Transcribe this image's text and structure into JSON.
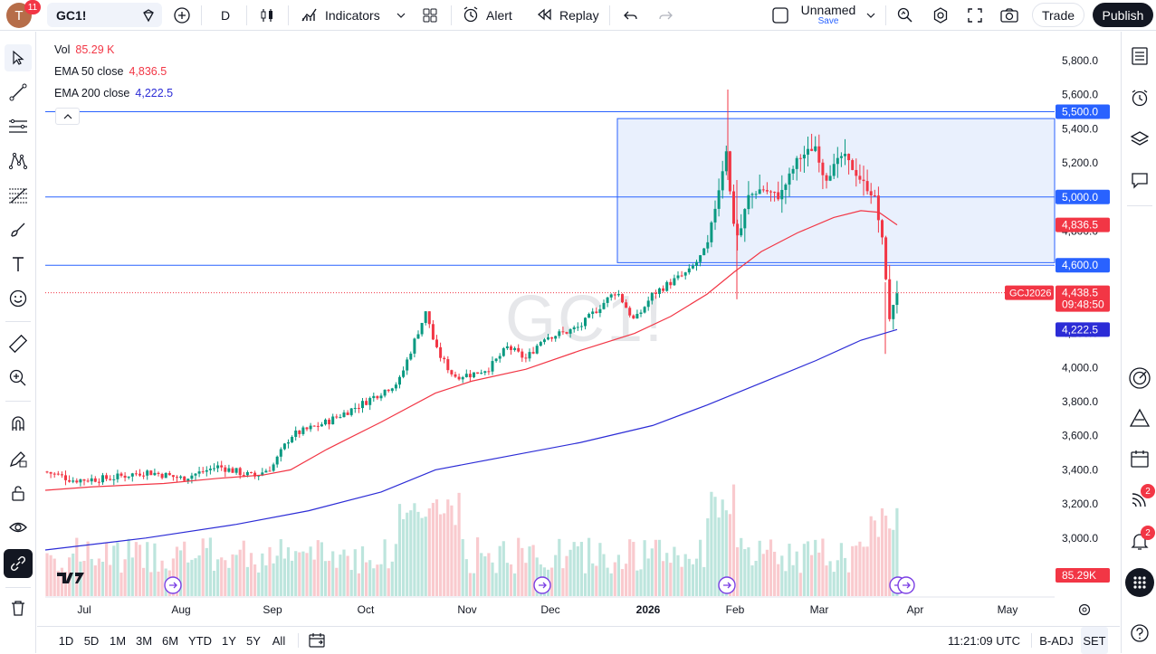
{
  "topbar": {
    "avatar_letter": "T",
    "avatar_badge": "11",
    "symbol": "GC1!",
    "interval": "D",
    "indicators_label": "Indicators",
    "alert_label": "Alert",
    "replay_label": "Replay",
    "layout_name": "Unnamed",
    "layout_save": "Save",
    "trade_label": "Trade",
    "publish_label": "Publish"
  },
  "legend": {
    "vol_label": "Vol",
    "vol_value": "85.29 K",
    "ema50_label": "EMA 50 close",
    "ema50_value": "4,836.5",
    "ema200_label": "EMA 200 close",
    "ema200_value": "4,222.5"
  },
  "watermark": "GC1!",
  "price_axis": {
    "ticks": [
      "5,800.0",
      "5,600.0",
      "5,400.0",
      "5,200.0",
      "5,000.0",
      "4,800.0",
      "4,600.0",
      "4,400.0",
      "4,200.0",
      "4,000.0",
      "3,800.0",
      "3,600.0",
      "3,400.0",
      "3,200.0",
      "3,000.0"
    ],
    "tags": {
      "hline_5500": "5,500.0",
      "hline_5000": "5,000.0",
      "ema50": "4,836.5",
      "hline_4600": "4,600.0",
      "last_price": "4,438.5",
      "countdown": "09:48:50",
      "contract": "GCJ2026",
      "ema200": "4,222.5",
      "volume": "85.29K"
    }
  },
  "time_axis": {
    "labels": [
      "Jul",
      "Aug",
      "Sep",
      "Oct",
      "Nov",
      "Dec",
      "2026",
      "Feb",
      "Mar",
      "Apr",
      "May"
    ]
  },
  "bottombar": {
    "ranges": [
      "1D",
      "5D",
      "1M",
      "3M",
      "6M",
      "YTD",
      "1Y",
      "5Y",
      "All"
    ],
    "clock": "11:21:09 UTC",
    "badj": "B-ADJ",
    "set": "SET"
  },
  "right_badges": {
    "feed": "2",
    "alerts": "2"
  },
  "colors": {
    "up": "#089981",
    "down": "#f23645",
    "ema50": "#f23645",
    "ema200": "#2c2cd6",
    "hline": "#2962ff",
    "rect_fill": "#e9f0fd",
    "accent": "#2962ff"
  },
  "chart_data": {
    "type": "candlestick",
    "ylim": [
      2900,
      5900
    ],
    "horizontal_lines": [
      5500,
      5000,
      4600
    ],
    "rectangle": {
      "from": "2026-01-01",
      "to": "2026-04-20",
      "top": 5460,
      "bottom": 4615
    },
    "last_price": 4438.5,
    "ema50_last": 4836.5,
    "ema200_last": 4222.5,
    "volume_last": "85.29K"
  }
}
